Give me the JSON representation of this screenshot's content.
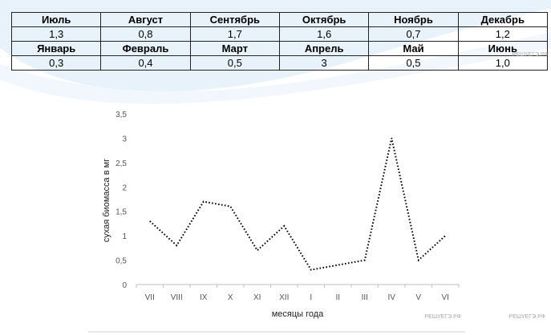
{
  "table": {
    "rows": [
      {
        "kind": "header",
        "cells": [
          "Июль",
          "Август",
          "Сентябрь",
          "Октябрь",
          "Ноябрь",
          "Декабрь"
        ]
      },
      {
        "kind": "value",
        "cells": [
          "1,3",
          "0,8",
          "1,7",
          "1,6",
          "0,7",
          "1,2"
        ]
      },
      {
        "kind": "header",
        "cells": [
          "Январь",
          "Февраль",
          "Март",
          "Апрель",
          "Май",
          "Июнь"
        ]
      },
      {
        "kind": "value",
        "cells": [
          "0,3",
          "0,4",
          "0,5",
          "3",
          "0,5",
          "1,0"
        ]
      }
    ]
  },
  "watermarks": [
    "РЕШУЕГЭ.РФ",
    "РЕШУЕГЭ.РФ",
    "РЕШУЕГЭ.РФ"
  ],
  "colors": {
    "line": "#000000",
    "background_swoosh": "#dbeaf5"
  },
  "chart_data": {
    "type": "line",
    "title": "",
    "xlabel": "месяцы года",
    "ylabel": "сухая биомасса в мг",
    "ylim": [
      0,
      3.5
    ],
    "yticks": [
      {
        "value": 0,
        "label": "0"
      },
      {
        "value": 0.5,
        "label": "0,5"
      },
      {
        "value": 1,
        "label": "1"
      },
      {
        "value": 1.5,
        "label": "1,5"
      },
      {
        "value": 2,
        "label": "2"
      },
      {
        "value": 2.5,
        "label": "2,5"
      },
      {
        "value": 3,
        "label": "3"
      },
      {
        "value": 3.5,
        "label": "3,5"
      }
    ],
    "categories": [
      "VII",
      "VIII",
      "IX",
      "X",
      "XI",
      "XII",
      "I",
      "II",
      "III",
      "IV",
      "V",
      "VI"
    ],
    "series": [
      {
        "values": [
          1.3,
          0.8,
          1.7,
          1.6,
          0.7,
          1.2,
          0.3,
          0.4,
          0.5,
          3,
          0.5,
          1.0
        ],
        "style": "dotted"
      }
    ],
    "grid": false,
    "legend": "none"
  }
}
